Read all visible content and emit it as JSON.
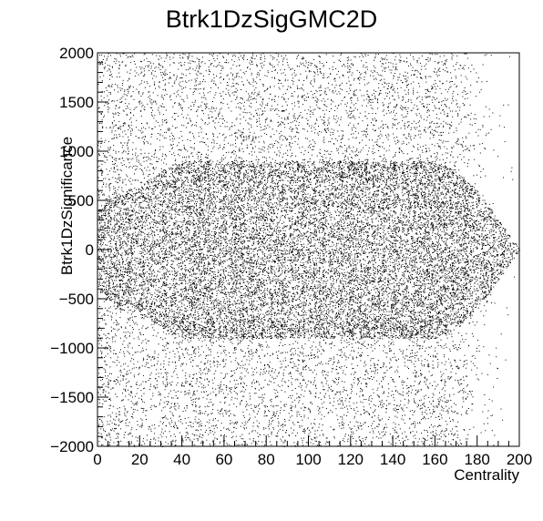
{
  "chart_data": {
    "type": "scatter",
    "title": "Btrk1DzSigGMC2D",
    "xlabel": "Centrality",
    "ylabel": "Btrk1DzSignificance",
    "xlim": [
      0,
      200
    ],
    "ylim": [
      -2000,
      2000
    ],
    "x_ticks": [
      "0",
      "20",
      "40",
      "60",
      "80",
      "100",
      "120",
      "140",
      "160",
      "180",
      "200"
    ],
    "y_ticks": [
      "2000",
      "1500",
      "1000",
      "500",
      "0",
      "−500",
      "−1000",
      "−1500",
      "−2000"
    ],
    "grid": false,
    "colors": {
      "marker": "#000000",
      "background": "#ffffff"
    },
    "density_profile": {
      "centrality": [
        0,
        10,
        20,
        30,
        40,
        50,
        60,
        70,
        80,
        90,
        100,
        110,
        120,
        130,
        140,
        150,
        160,
        170,
        180,
        190,
        200
      ],
      "core_halfwidth": [
        400,
        600,
        650,
        800,
        900,
        900,
        900,
        900,
        900,
        900,
        900,
        900,
        900,
        900,
        900,
        900,
        900,
        800,
        600,
        300,
        0
      ],
      "tail_density": [
        0.6,
        0.55,
        0.5,
        0.45,
        0.45,
        0.45,
        0.45,
        0.45,
        0.45,
        0.45,
        0.45,
        0.45,
        0.45,
        0.45,
        0.45,
        0.45,
        0.45,
        0.35,
        0.15,
        0.04,
        0
      ]
    }
  }
}
